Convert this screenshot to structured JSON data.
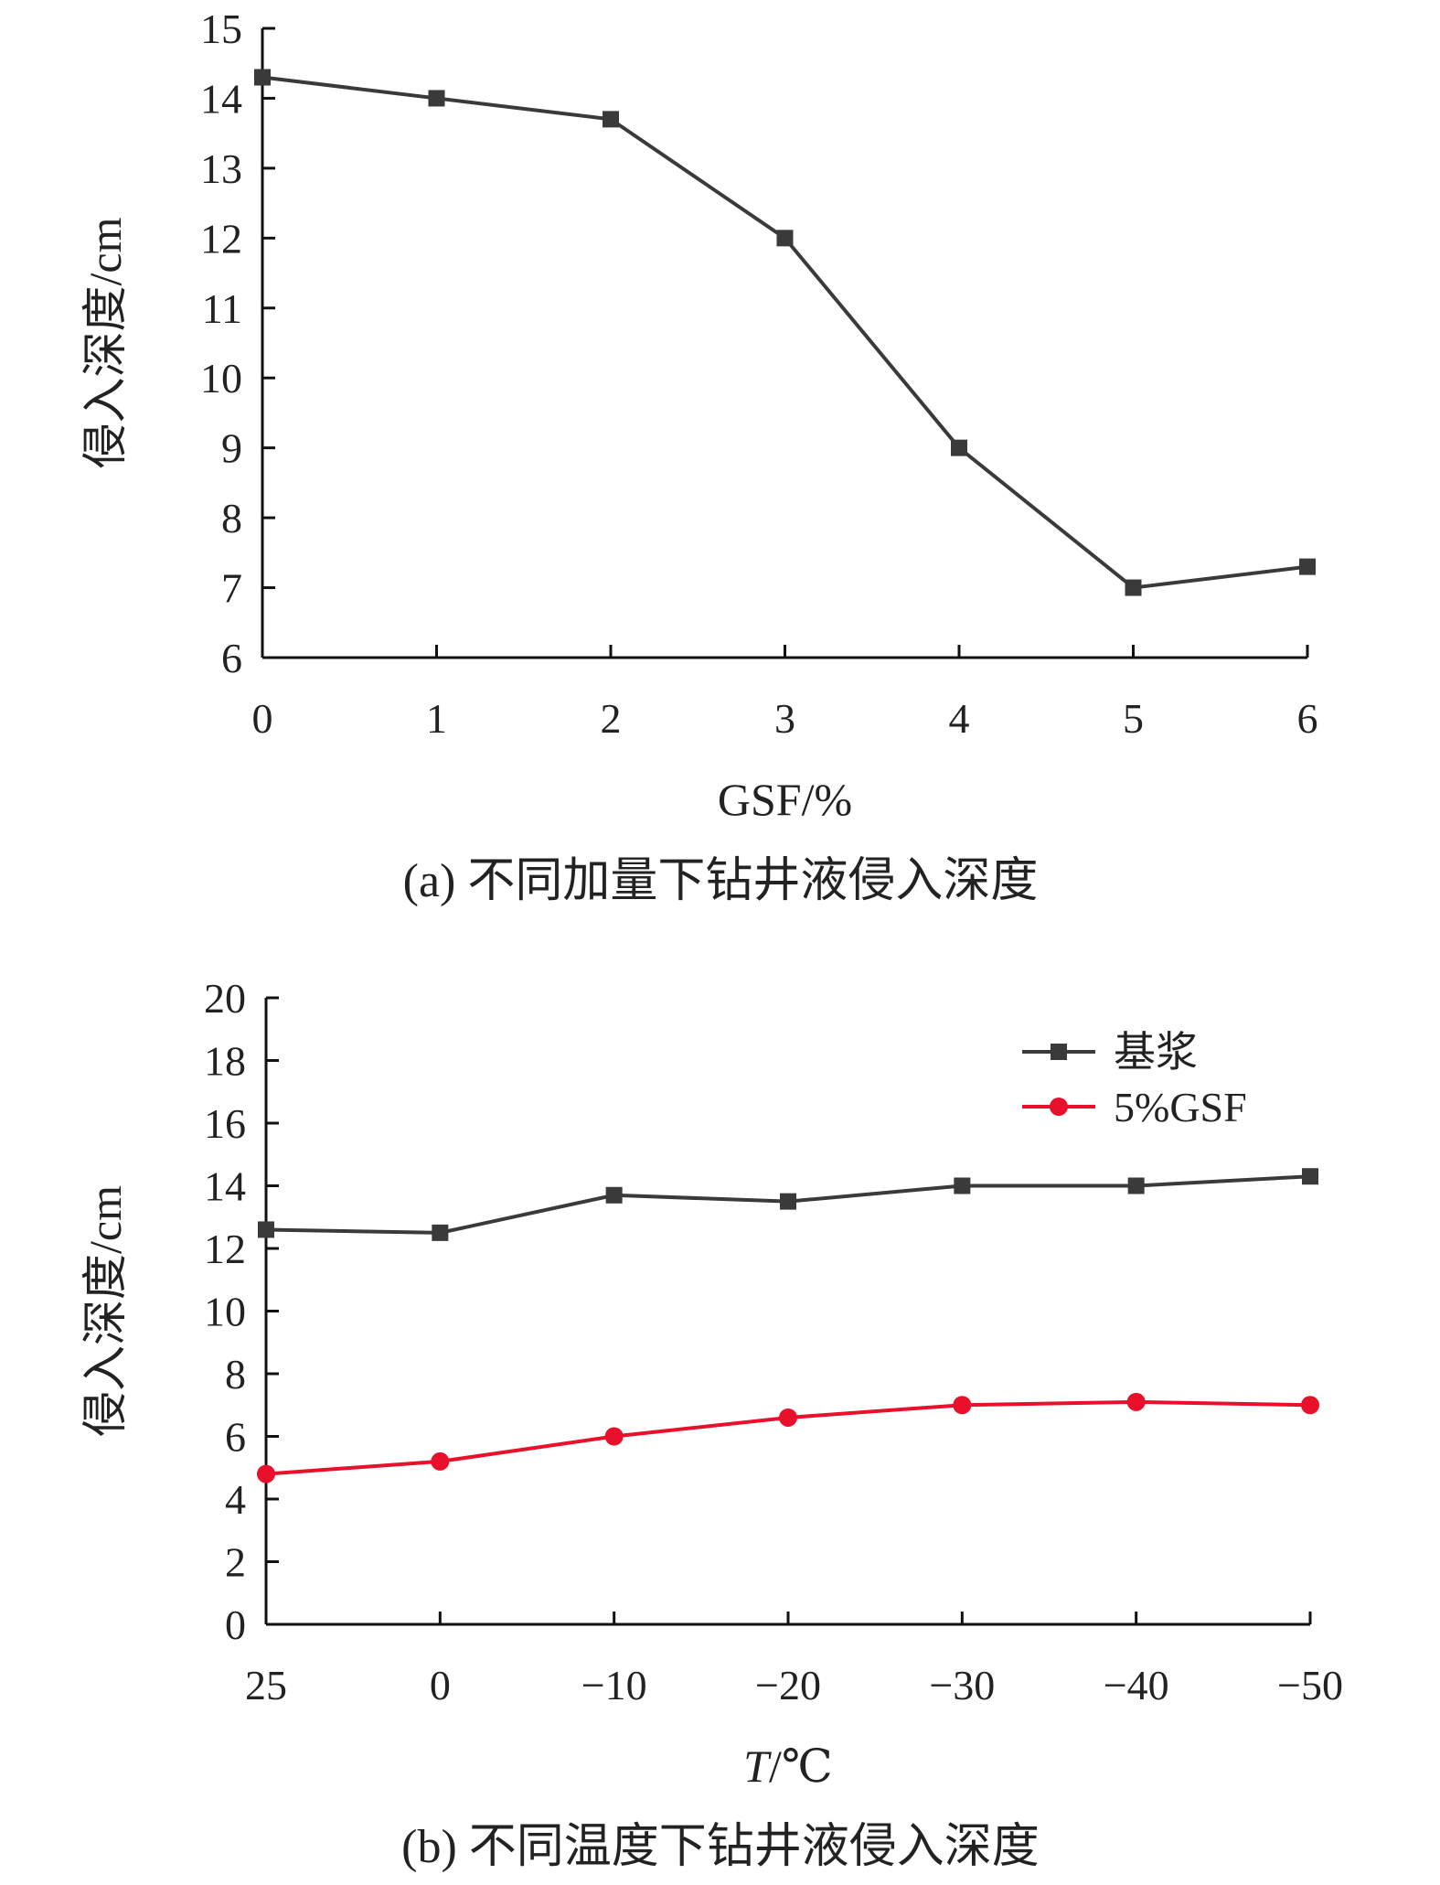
{
  "figure": {
    "caption_a": "(a) 不同加量下钻井液侵入深度",
    "caption_b": "(b) 不同温度下钻井液侵入深度"
  },
  "chart_data": [
    {
      "type": "line",
      "x": [
        0,
        1,
        2,
        3,
        4,
        5,
        6
      ],
      "x_tick_labels": [
        "0",
        "1",
        "2",
        "3",
        "4",
        "5",
        "6"
      ],
      "xlabel": "GSF/%",
      "ylabel": "侵入深度/cm",
      "ylim": [
        6,
        15
      ],
      "y_ticks": [
        6,
        7,
        8,
        9,
        10,
        11,
        12,
        13,
        14,
        15
      ],
      "grid": false,
      "series": [
        {
          "values": [
            14.3,
            14.0,
            13.7,
            12.0,
            9.0,
            7.0,
            7.3
          ],
          "color": "#3a3a3a",
          "marker": "square"
        }
      ]
    },
    {
      "type": "line",
      "categories": [
        "25",
        "0",
        "−10",
        "−20",
        "−30",
        "−40",
        "−50"
      ],
      "xlabel_italic": "T",
      "xlabel_rest": "/℃",
      "ylabel": "侵入深度/cm",
      "ylim": [
        0,
        20
      ],
      "y_ticks": [
        0,
        2,
        4,
        6,
        8,
        10,
        12,
        14,
        16,
        18,
        20
      ],
      "grid": false,
      "legend_position": "top-right",
      "series": [
        {
          "name": "基浆",
          "values": [
            12.6,
            12.5,
            13.7,
            13.5,
            14.0,
            14.0,
            14.3
          ],
          "color": "#3a3a3a",
          "marker": "square"
        },
        {
          "name": "5%GSF",
          "values": [
            4.8,
            5.2,
            6.0,
            6.6,
            7.0,
            7.1,
            7.0
          ],
          "color": "#e8102a",
          "marker": "circle"
        }
      ]
    }
  ]
}
